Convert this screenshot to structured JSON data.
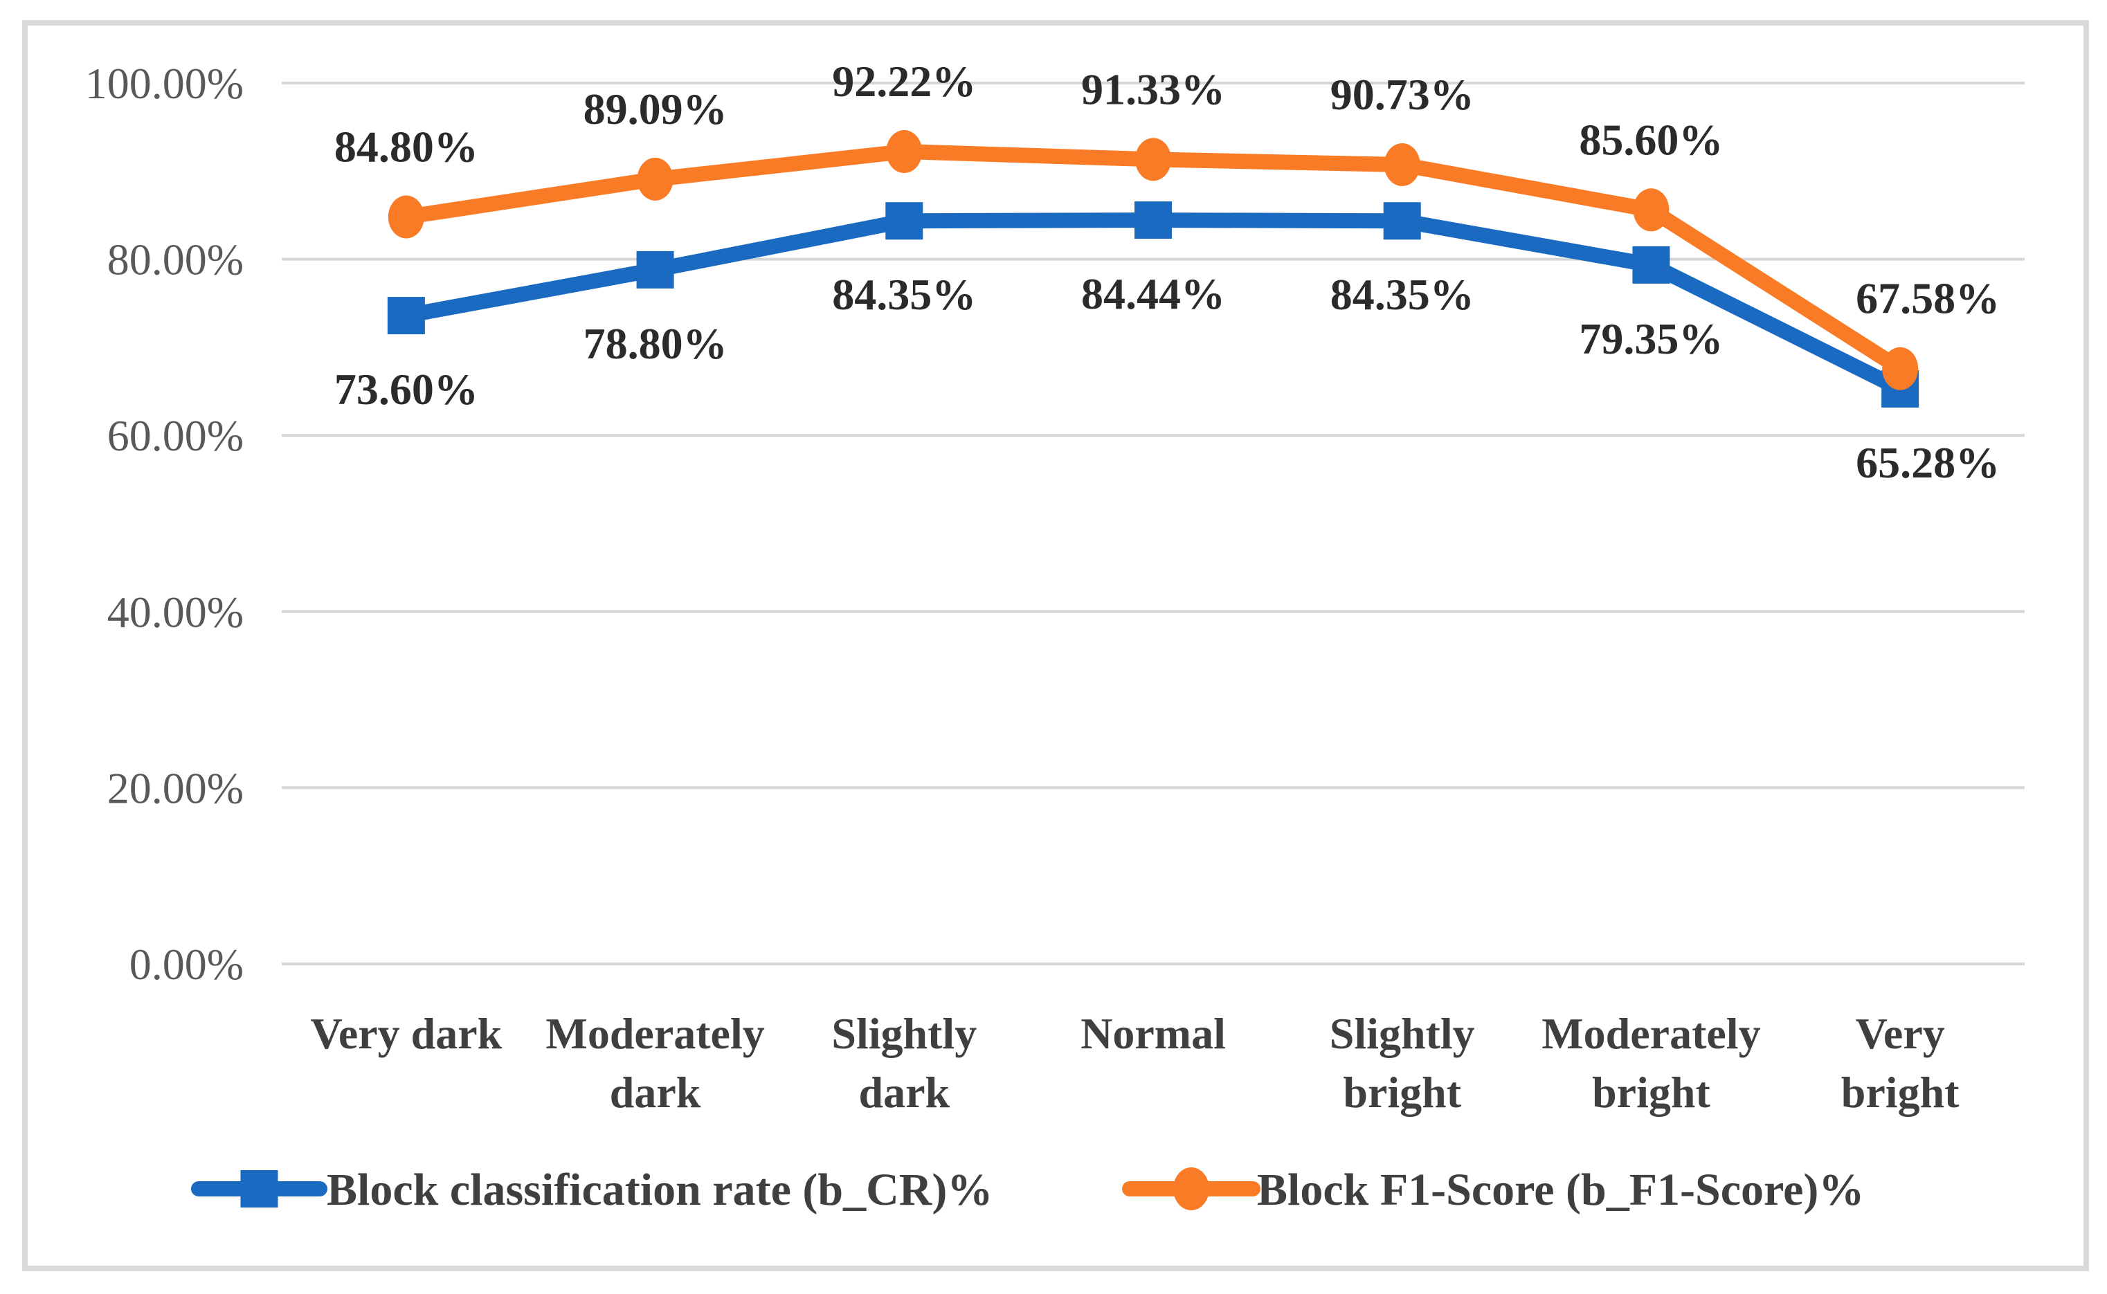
{
  "figure": {
    "background": "#ffffff",
    "border_color": "#d9d9d9"
  },
  "chart_data": {
    "type": "line",
    "title": "",
    "xlabel": "",
    "ylabel": "",
    "categories": [
      "Very dark",
      "Moderately dark",
      "Slightly dark",
      "Normal",
      "Slightly bright",
      "Moderately bright",
      "Very bright"
    ],
    "category_lines": [
      [
        "Very dark"
      ],
      [
        "Moderately",
        "dark"
      ],
      [
        "Slightly",
        "dark"
      ],
      [
        "Normal"
      ],
      [
        "Slightly",
        "bright"
      ],
      [
        "Moderately",
        "bright"
      ],
      [
        "Very",
        "bright"
      ]
    ],
    "series": [
      {
        "name": "Block classification rate (b_CR)%",
        "values": [
          73.6,
          78.8,
          84.35,
          84.44,
          84.35,
          79.35,
          65.28
        ],
        "labels": [
          "73.60%",
          "78.80%",
          "84.35%",
          "84.44%",
          "84.35%",
          "79.35%",
          "65.28%"
        ],
        "color": "#1b6ac1",
        "marker": "square",
        "label_side": "below"
      },
      {
        "name": "Block F1-Score (b_F1-Score)%",
        "values": [
          84.8,
          89.09,
          92.22,
          91.33,
          90.73,
          85.6,
          67.58
        ],
        "labels": [
          "84.80%",
          "89.09%",
          "92.22%",
          "91.33%",
          "90.73%",
          "85.60%",
          "67.58%"
        ],
        "color": "#f97b25",
        "marker": "circle",
        "label_side": "above"
      }
    ],
    "y_axis": {
      "ticks": [
        "0.00%",
        "20.00%",
        "40.00%",
        "60.00%",
        "80.00%",
        "100.00%"
      ],
      "tick_values": [
        0,
        20,
        40,
        60,
        80,
        100
      ],
      "min": 0,
      "max": 100
    },
    "grid": true,
    "gridline_color": "#d6d6d6",
    "legend_position": "bottom",
    "text_colors": {
      "tick": "#595959",
      "data_label": "#2b2b2b",
      "category": "#3f3f3f",
      "legend": "#3f3f3f"
    }
  }
}
